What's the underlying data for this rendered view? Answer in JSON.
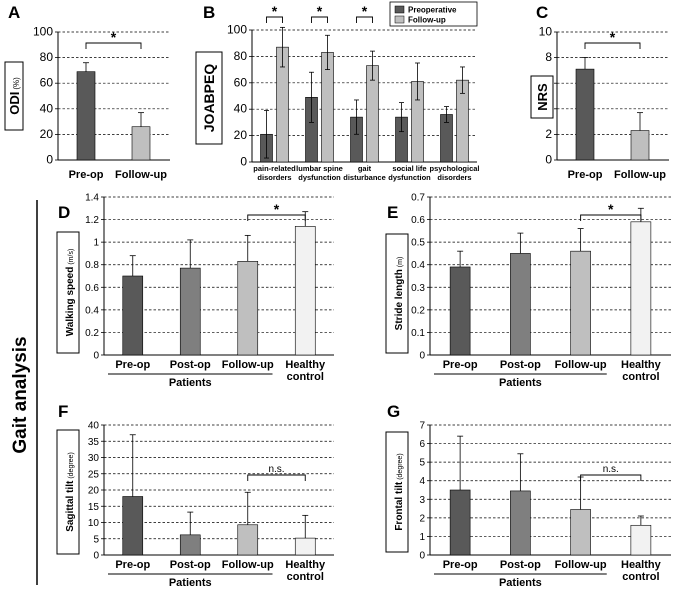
{
  "side_title": "Gait analysis",
  "colors": {
    "pre": "#595959",
    "post": "#7f7f7f",
    "follow": "#bfbfbf",
    "healthy": "#f2f2f2"
  },
  "chart_data": [
    {
      "id": "A",
      "type": "bar",
      "letter": "A",
      "ylabel_main": "ODI",
      "ylabel_unit": "(%)",
      "categories": [
        "Pre-op",
        "Follow-up"
      ],
      "values": [
        69,
        26
      ],
      "errors": [
        7,
        11
      ],
      "ylim": [
        0,
        100
      ],
      "yticks": [
        "0",
        "20",
        "40",
        "60",
        "80",
        "100"
      ],
      "significance": [
        {
          "from": 0,
          "to": 1,
          "label": "*"
        }
      ]
    },
    {
      "id": "B",
      "type": "bar",
      "letter": "B",
      "ylabel_main": "JOABPEQ",
      "categories": [
        "pain-related\ndisorders",
        "lumbar spine\ndysfunction",
        "gait\ndisturbance",
        "social life\ndysfunction",
        "psychological\ndisorders"
      ],
      "series": [
        {
          "name": "Preoperative",
          "values": [
            21,
            49,
            34,
            34,
            36
          ],
          "errors": [
            18,
            19,
            13,
            11,
            6
          ]
        },
        {
          "name": "Follow-up",
          "values": [
            87,
            83,
            73,
            61,
            62
          ],
          "errors": [
            15,
            13,
            11,
            14,
            10
          ]
        }
      ],
      "ylim": [
        0,
        100
      ],
      "yticks": [
        "0",
        "20",
        "40",
        "60",
        "80",
        "100"
      ],
      "significance_label": "*",
      "legend": "top-right"
    },
    {
      "id": "C",
      "type": "bar",
      "letter": "C",
      "ylabel_main": "NRS",
      "categories": [
        "Pre-op",
        "Follow-up"
      ],
      "values": [
        7.1,
        2.3
      ],
      "errors": [
        0.9,
        1.4
      ],
      "ylim": [
        0,
        10
      ],
      "yticks": [
        "0",
        "2",
        "4",
        "6",
        "8",
        "10"
      ],
      "significance": [
        {
          "from": 0,
          "to": 1,
          "label": "*"
        }
      ]
    },
    {
      "id": "D",
      "type": "bar",
      "letter": "D",
      "ylabel_main": "Walking speed",
      "ylabel_unit": "(m/s)",
      "categories": [
        "Pre-op",
        "Post-op",
        "Follow-up",
        "Healthy\ncontrol"
      ],
      "group_label": "Patients",
      "values": [
        0.7,
        0.77,
        0.83,
        1.14
      ],
      "errors": [
        0.18,
        0.25,
        0.23,
        0.13
      ],
      "ylim": [
        0,
        1.4
      ],
      "yticks": [
        "0",
        "0.2",
        "0.4",
        "0.6",
        "0.8",
        "1",
        "1.2",
        "1.4"
      ],
      "significance": [
        {
          "from": 2,
          "to": 3,
          "label": "*"
        }
      ]
    },
    {
      "id": "E",
      "type": "bar",
      "letter": "E",
      "ylabel_main": "Stride length",
      "ylabel_unit": "(m)",
      "categories": [
        "Pre-op",
        "Post-op",
        "Follow-up",
        "Healthy\ncontrol"
      ],
      "group_label": "Patients",
      "values": [
        0.39,
        0.45,
        0.46,
        0.59
      ],
      "errors": [
        0.07,
        0.09,
        0.1,
        0.06
      ],
      "ylim": [
        0,
        0.7
      ],
      "yticks": [
        "0",
        "0.1",
        "0.2",
        "0.3",
        "0.4",
        "0.5",
        "0.6",
        "0.7"
      ],
      "significance": [
        {
          "from": 2,
          "to": 3,
          "label": "*"
        }
      ]
    },
    {
      "id": "F",
      "type": "bar",
      "letter": "F",
      "ylabel_main": "Sagittal tilt",
      "ylabel_unit": "(degree)",
      "categories": [
        "Pre-op",
        "Post-op",
        "Follow-up",
        "Healthy\ncontrol"
      ],
      "group_label": "Patients",
      "values": [
        18,
        6.2,
        9.3,
        5.2
      ],
      "errors": [
        19,
        7,
        10,
        7
      ],
      "ylim": [
        0,
        40
      ],
      "yticks": [
        "0",
        "5",
        "10",
        "15",
        "20",
        "25",
        "30",
        "35",
        "40"
      ],
      "significance": [
        {
          "from": 2,
          "to": 3,
          "label": "n.s."
        }
      ]
    },
    {
      "id": "G",
      "type": "bar",
      "letter": "G",
      "ylabel_main": "Frontal tilt",
      "ylabel_unit": "(degree)",
      "categories": [
        "Pre-op",
        "Post-op",
        "Follow-up",
        "Healthy\ncontrol"
      ],
      "group_label": "Patients",
      "values": [
        3.5,
        3.45,
        2.45,
        1.6
      ],
      "errors": [
        2.9,
        2.0,
        1.75,
        0.5
      ],
      "ylim": [
        0,
        7
      ],
      "yticks": [
        "0",
        "1",
        "2",
        "3",
        "4",
        "5",
        "6",
        "7"
      ],
      "significance": [
        {
          "from": 2,
          "to": 3,
          "label": "n.s."
        }
      ]
    }
  ]
}
